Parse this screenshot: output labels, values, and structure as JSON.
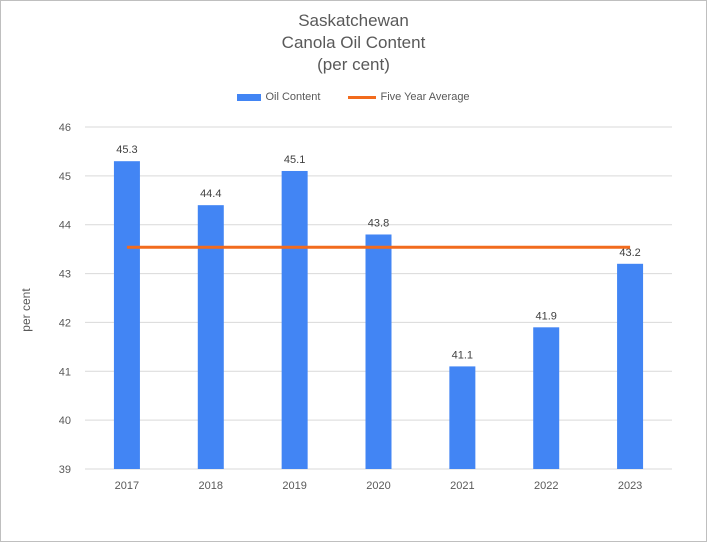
{
  "chart_data": {
    "type": "bar",
    "title_lines": [
      "Saskatchewan",
      "Canola Oil Content",
      "(per cent)"
    ],
    "categories": [
      "2017",
      "2018",
      "2019",
      "2020",
      "2021",
      "2022",
      "2023"
    ],
    "series": [
      {
        "name": "Oil Content",
        "type": "bar",
        "color": "#4285f4",
        "values": [
          45.3,
          44.4,
          45.1,
          43.8,
          41.1,
          41.9,
          43.2
        ]
      },
      {
        "name": "Five Year Average",
        "type": "line",
        "color": "#f26b1d",
        "values": [
          43.54,
          43.54,
          43.54,
          43.54,
          43.54,
          43.54,
          43.54
        ]
      }
    ],
    "xlabel": "",
    "ylabel": "per cent",
    "ylim": [
      39,
      46
    ],
    "yticks": [
      "39",
      "40",
      "41",
      "42",
      "43",
      "44",
      "45",
      "46"
    ],
    "grid": true,
    "legend_position": "top"
  }
}
